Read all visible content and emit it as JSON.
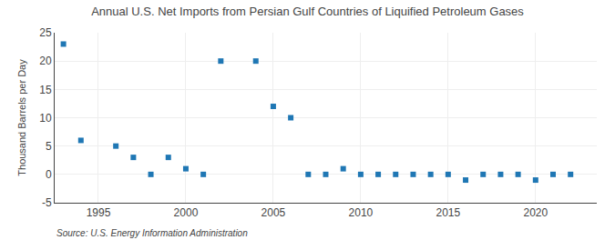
{
  "chart_data": {
    "type": "scatter",
    "title": "Annual U.S. Net Imports from Persian Gulf Countries of Liquified Petroleum Gases",
    "ylabel": "Thousand Barrels per Day",
    "annotations": [
      "Source: U.S. Energy Information Administration"
    ],
    "x": [
      1993,
      1994,
      1996,
      1997,
      1998,
      1999,
      2000,
      2001,
      2002,
      2004,
      2005,
      2006,
      2007,
      2008,
      2009,
      2010,
      2011,
      2012,
      2013,
      2014,
      2015,
      2016,
      2017,
      2018,
      2019,
      2020,
      2021,
      2022
    ],
    "values": [
      23,
      6,
      5,
      3,
      0,
      3,
      1,
      0,
      20,
      20,
      12,
      10,
      0,
      0,
      1,
      0,
      0,
      0,
      0,
      0,
      0,
      -1,
      0,
      0,
      0,
      -1,
      0,
      0
    ],
    "xlim": [
      1992.5,
      2023.5
    ],
    "ylim": [
      -5,
      25
    ],
    "xticks": [
      1995,
      2000,
      2005,
      2010,
      2015,
      2020
    ],
    "yticks": [
      -5,
      0,
      5,
      10,
      15,
      20,
      25
    ],
    "grid": true,
    "marker": "square"
  }
}
